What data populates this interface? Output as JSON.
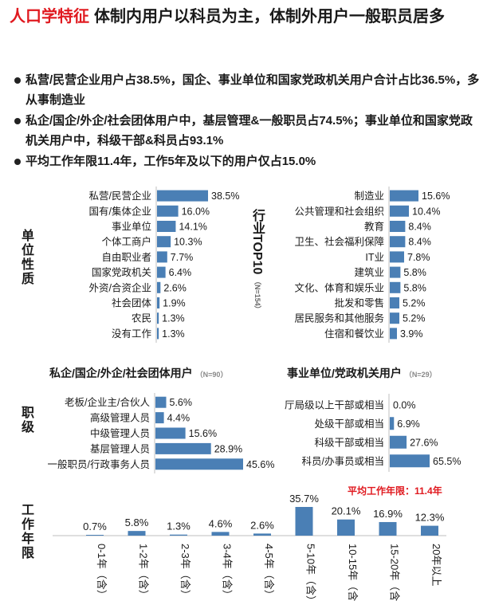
{
  "header": {
    "highlight": "人口学特征",
    "title": "体制内用户以科员为主，体制外用户一般职员居多"
  },
  "bullets": [
    "私营/民营企业用户占38.5%，国企、事业单位和国家党政机关用户合计占比36.5%，多从事制造业",
    "私企/国企/外企/社会团体用户中，基层管理&一般职员占74.5%；事业单位和国家党政机关用户中，科级干部&科员占93.1%",
    "平均工作年限11.4年，工作5年及以下的用户仅占15.0%"
  ],
  "labels": {
    "unit_nature": "单位性质",
    "industry_top10": "行业TOP10",
    "industry_n": "（N=154）",
    "job_rank": "职级",
    "work_years": "工作年限",
    "private_title": "私企/国企/外企/社会团体用户",
    "private_n": "（N=90）",
    "public_title": "事业单位/党政机关用户",
    "public_n": "（N=29）",
    "avg_years": "平均工作年限：11.4年"
  },
  "colors": {
    "bar": "#4a7fb5",
    "accent": "#e0191f",
    "axis": "#bfbfbf"
  },
  "chart_data": [
    {
      "id": "unit",
      "type": "bar",
      "orientation": "horizontal",
      "title": "单位性质",
      "categories": [
        "私营/民营企业",
        "国有/集体企业",
        "事业单位",
        "个体工商户",
        "自由职业者",
        "国家党政机关",
        "外资/合资企业",
        "社会团体",
        "农民",
        "没有工作"
      ],
      "values": [
        38.5,
        16.0,
        14.1,
        10.3,
        7.7,
        6.4,
        2.6,
        1.9,
        1.3,
        1.3
      ],
      "labels": [
        "38.5%",
        "16.0%",
        "14.1%",
        "10.3%",
        "7.7%",
        "6.4%",
        "2.6%",
        "1.9%",
        "1.3%",
        "1.3%"
      ]
    },
    {
      "id": "industry",
      "type": "bar",
      "orientation": "horizontal",
      "title": "行业TOP10",
      "categories": [
        "制造业",
        "公共管理和社会组织",
        "教育",
        "卫生、社会福利保障",
        "IT业",
        "建筑业",
        "文化、体育和娱乐业",
        "批发和零售",
        "居民服务和其他服务",
        "住宿和餐饮业"
      ],
      "values": [
        15.6,
        10.4,
        8.4,
        8.4,
        7.8,
        5.8,
        5.8,
        5.2,
        5.2,
        3.9
      ],
      "labels": [
        "15.6%",
        "10.4%",
        "8.4%",
        "8.4%",
        "7.8%",
        "5.8%",
        "5.8%",
        "5.2%",
        "5.2%",
        "3.9%"
      ]
    },
    {
      "id": "private",
      "type": "bar",
      "orientation": "horizontal",
      "title": "私企/国企/外企/社会团体用户",
      "categories": [
        "老板/企业主/合伙人",
        "高级管理人员",
        "中级管理人员",
        "基层管理人员",
        "一般职员/行政事务人员"
      ],
      "values": [
        5.6,
        4.4,
        15.6,
        28.9,
        45.6
      ],
      "labels": [
        "5.6%",
        "4.4%",
        "15.6%",
        "28.9%",
        "45.6%"
      ]
    },
    {
      "id": "public",
      "type": "bar",
      "orientation": "horizontal",
      "title": "事业单位/党政机关用户",
      "categories": [
        "厅局级以上干部或相当",
        "处级干部或相当",
        "科级干部或相当",
        "科员/办事员或相当"
      ],
      "values": [
        0.0,
        6.9,
        27.6,
        65.5
      ],
      "labels": [
        "0.0%",
        "6.9%",
        "27.6%",
        "65.5%"
      ]
    },
    {
      "id": "years",
      "type": "bar",
      "orientation": "vertical",
      "title": "工作年限",
      "categories": [
        "0-1年（含）",
        "1-2年（含）",
        "2-3年（含）",
        "3-4年（含）",
        "4-5年（含）",
        "5-10年（含）",
        "10-15年（含）",
        "15-20年（含）",
        "20年以上"
      ],
      "values": [
        0.7,
        5.8,
        1.3,
        4.6,
        2.6,
        35.7,
        20.1,
        16.9,
        12.3
      ],
      "labels": [
        "0.7%",
        "5.8%",
        "1.3%",
        "4.6%",
        "2.6%",
        "35.7%",
        "20.1%",
        "16.9%",
        "12.3%"
      ]
    }
  ]
}
